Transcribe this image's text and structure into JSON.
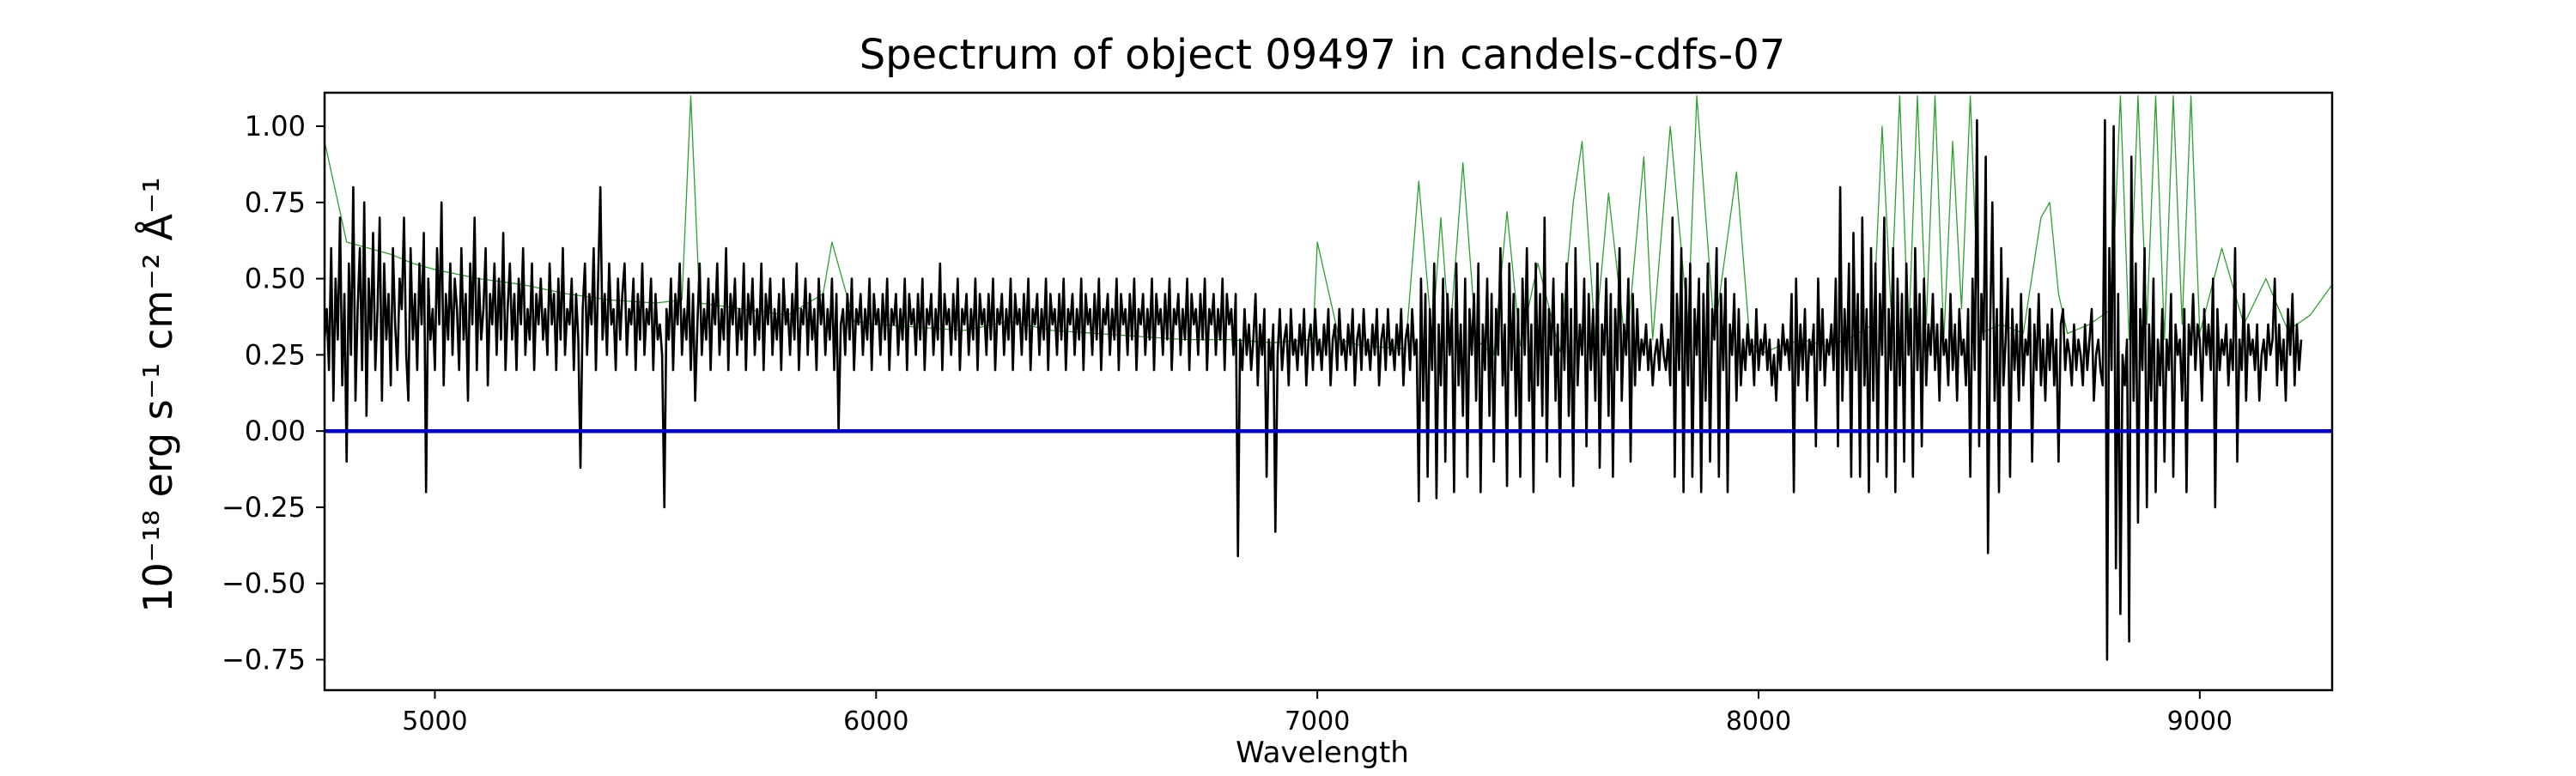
{
  "chart_data": {
    "type": "line",
    "title": "Spectrum of object 09497 in candels-cdfs-07",
    "xlabel": "Wavelength",
    "ylabel": "10⁻¹⁸ erg s⁻¹ cm⁻² Å⁻¹",
    "xlim": [
      4750,
      9300
    ],
    "ylim": [
      -0.85,
      1.11
    ],
    "x_ticks": [
      5000,
      6000,
      7000,
      8000,
      9000
    ],
    "x_tick_labels": [
      "5000",
      "6000",
      "7000",
      "8000",
      "9000"
    ],
    "y_ticks": [
      -0.75,
      -0.5,
      -0.25,
      0.0,
      0.25,
      0.5,
      0.75,
      1.0
    ],
    "y_tick_labels": [
      "−0.75",
      "−0.50",
      "−0.25",
      "0.00",
      "0.25",
      "0.50",
      "0.75",
      "1.00"
    ],
    "grid": false,
    "series": [
      {
        "style": "thin-green",
        "color": "#2ca02c",
        "x": [
          4750,
          4800,
          4850,
          4900,
          4950,
          5000,
          5100,
          5200,
          5300,
          5400,
          5500,
          5560,
          5580,
          5600,
          5700,
          5800,
          5880,
          5900,
          5950,
          6000,
          6100,
          6200,
          6300,
          6400,
          6500,
          6600,
          6700,
          6800,
          6900,
          6990,
          7000,
          7050,
          7100,
          7200,
          7230,
          7260,
          7280,
          7300,
          7330,
          7360,
          7400,
          7430,
          7460,
          7500,
          7550,
          7580,
          7600,
          7630,
          7660,
          7700,
          7740,
          7760,
          7800,
          7840,
          7860,
          7900,
          7950,
          7980,
          8000,
          8050,
          8100,
          8150,
          8200,
          8260,
          8280,
          8300,
          8320,
          8340,
          8360,
          8380,
          8400,
          8420,
          8440,
          8460,
          8480,
          8500,
          8550,
          8600,
          8640,
          8660,
          8680,
          8700,
          8750,
          8800,
          8820,
          8840,
          8860,
          8880,
          8900,
          8920,
          8940,
          8960,
          8980,
          9000,
          9050,
          9100,
          9150,
          9200,
          9250,
          9300
        ],
        "y": [
          0.95,
          0.62,
          0.6,
          0.58,
          0.55,
          0.53,
          0.5,
          0.48,
          0.45,
          0.43,
          0.42,
          0.43,
          1.1,
          0.42,
          0.4,
          0.38,
          0.45,
          0.62,
          0.36,
          0.35,
          0.34,
          0.33,
          0.36,
          0.33,
          0.32,
          0.31,
          0.3,
          0.3,
          0.29,
          0.3,
          0.62,
          0.3,
          0.28,
          0.27,
          0.82,
          0.3,
          0.7,
          0.3,
          0.88,
          0.3,
          0.25,
          0.72,
          0.28,
          0.55,
          0.26,
          0.75,
          0.95,
          0.3,
          0.78,
          0.26,
          0.9,
          0.3,
          1.0,
          0.35,
          1.1,
          0.32,
          0.85,
          0.3,
          0.25,
          0.28,
          0.3,
          0.28,
          0.3,
          0.35,
          1.0,
          0.4,
          1.1,
          0.3,
          1.1,
          0.35,
          1.1,
          0.3,
          0.95,
          0.4,
          1.1,
          0.32,
          0.35,
          0.32,
          0.7,
          0.75,
          0.45,
          0.32,
          0.35,
          0.4,
          1.1,
          0.3,
          1.1,
          0.35,
          1.1,
          0.3,
          1.1,
          0.35,
          1.1,
          0.32,
          0.6,
          0.35,
          0.5,
          0.33,
          0.38,
          0.48
        ]
      },
      {
        "style": "thick-black",
        "color": "#000000",
        "x_start": 4750,
        "x_step": 5,
        "y": [
          0.3,
          0.4,
          0.2,
          0.6,
          0.1,
          0.5,
          0.3,
          0.7,
          0.15,
          0.45,
          -0.1,
          0.55,
          0.25,
          0.8,
          0.1,
          0.4,
          0.6,
          0.2,
          0.75,
          0.05,
          0.5,
          0.3,
          0.65,
          0.2,
          0.4,
          0.7,
          0.1,
          0.55,
          0.3,
          0.45,
          0.15,
          0.6,
          0.35,
          0.2,
          0.5,
          0.4,
          0.7,
          0.25,
          0.1,
          0.6,
          0.3,
          0.45,
          0.2,
          0.55,
          0.35,
          0.65,
          -0.2,
          0.5,
          0.3,
          0.4,
          0.2,
          0.6,
          0.35,
          0.75,
          0.15,
          0.45,
          0.3,
          0.55,
          0.25,
          0.5,
          0.4,
          0.2,
          0.6,
          0.3,
          0.45,
          0.1,
          0.55,
          0.35,
          0.7,
          0.2,
          0.5,
          0.3,
          0.4,
          0.6,
          0.15,
          0.45,
          0.35,
          0.55,
          0.25,
          0.5,
          0.3,
          0.65,
          0.2,
          0.4,
          0.55,
          0.3,
          0.45,
          0.2,
          0.5,
          0.35,
          0.6,
          0.25,
          0.4,
          0.3,
          0.55,
          0.2,
          0.45,
          0.35,
          0.5,
          0.3,
          0.4,
          0.25,
          0.55,
          0.35,
          0.45,
          0.2,
          0.5,
          0.3,
          0.6,
          0.25,
          0.4,
          0.35,
          0.5,
          0.2,
          0.45,
          0.3,
          -0.12,
          0.4,
          0.55,
          0.25,
          0.45,
          0.35,
          0.6,
          0.2,
          0.5,
          0.8,
          0.3,
          0.45,
          0.25,
          0.55,
          0.35,
          0.4,
          0.2,
          0.5,
          0.3,
          0.45,
          0.55,
          0.25,
          0.4,
          0.35,
          0.5,
          0.2,
          0.45,
          0.3,
          0.55,
          0.25,
          0.4,
          0.35,
          0.5,
          0.2,
          0.45,
          0.3,
          0.35,
          0.25,
          -0.25,
          0.4,
          0.3,
          0.5,
          0.2,
          0.45,
          0.35,
          0.55,
          0.25,
          0.4,
          0.3,
          0.5,
          0.2,
          0.45,
          0.1,
          0.35,
          0.55,
          0.25,
          0.4,
          0.3,
          0.5,
          0.2,
          0.45,
          0.35,
          0.55,
          0.25,
          0.4,
          0.3,
          0.6,
          0.2,
          0.45,
          0.35,
          0.5,
          0.25,
          0.4,
          0.3,
          0.55,
          0.2,
          0.45,
          0.35,
          0.5,
          0.25,
          0.4,
          0.3,
          0.55,
          0.2,
          0.45,
          0.35,
          0.5,
          0.25,
          0.4,
          0.3,
          0.45,
          0.2,
          0.5,
          0.35,
          0.4,
          0.25,
          0.45,
          0.3,
          0.55,
          0.2,
          0.4,
          0.35,
          0.5,
          0.25,
          0.45,
          0.3,
          0.4,
          0.2,
          0.5,
          0.35,
          0.45,
          0.25,
          0.4,
          0.3,
          0.5,
          0.2,
          0.45,
          0.0,
          0.35,
          0.4,
          0.25,
          0.45,
          0.3,
          0.5,
          0.2,
          0.4,
          0.35,
          0.45,
          0.25,
          0.4,
          0.3,
          0.5,
          0.2,
          0.45,
          0.35,
          0.4,
          0.25,
          0.45,
          0.3,
          0.5,
          0.2,
          0.4,
          0.35,
          0.45,
          0.25,
          0.4,
          0.3,
          0.5,
          0.2,
          0.45,
          0.35,
          0.4,
          0.25,
          0.45,
          0.3,
          0.5,
          0.2,
          0.4,
          0.35,
          0.45,
          0.25,
          0.4,
          0.3,
          0.55,
          0.2,
          0.45,
          0.35,
          0.4,
          0.25,
          0.45,
          0.3,
          0.5,
          0.2,
          0.4,
          0.35,
          0.45,
          0.25,
          0.4,
          0.3,
          0.5,
          0.2,
          0.45,
          0.35,
          0.4,
          0.25,
          0.45,
          0.3,
          0.5,
          0.2,
          0.4,
          0.35,
          0.45,
          0.25,
          0.4,
          0.3,
          0.5,
          0.2,
          0.45,
          0.35,
          0.4,
          0.25,
          0.45,
          0.3,
          0.5,
          0.2,
          0.4,
          0.35,
          0.45,
          0.25,
          0.4,
          0.3,
          0.5,
          0.2,
          0.45,
          0.35,
          0.4,
          0.25,
          0.45,
          0.3,
          0.5,
          0.2,
          0.4,
          0.35,
          0.45,
          0.25,
          0.4,
          0.3,
          0.5,
          0.2,
          0.45,
          0.35,
          0.4,
          0.25,
          0.45,
          0.3,
          0.5,
          0.2,
          0.4,
          0.35,
          0.45,
          0.25,
          0.4,
          0.3,
          0.5,
          0.2,
          0.45,
          0.35,
          0.4,
          0.25,
          0.45,
          0.3,
          0.5,
          0.2,
          0.4,
          0.35,
          0.45,
          0.25,
          0.4,
          0.3,
          0.5,
          0.2,
          0.45,
          0.35,
          0.4,
          0.25,
          0.45,
          0.3,
          0.5,
          0.2,
          0.4,
          0.35,
          0.45,
          0.25,
          0.4,
          0.3,
          0.5,
          0.2,
          0.45,
          0.35,
          0.4,
          0.25,
          0.45,
          0.3,
          0.5,
          0.2,
          0.4,
          0.35,
          0.45,
          0.25,
          0.4,
          0.3,
          0.5,
          0.2,
          0.45,
          0.35,
          0.4,
          0.25,
          0.45,
          -0.41,
          0.3,
          0.2,
          0.4,
          0.25,
          0.35,
          0.2,
          0.3,
          0.45,
          0.15,
          0.35,
          0.25,
          0.4,
          -0.15,
          0.3,
          0.2,
          0.35,
          -0.33,
          0.25,
          0.4,
          0.2,
          0.3,
          0.35,
          0.15,
          0.4,
          0.25,
          0.3,
          0.2,
          0.35,
          0.25,
          0.4,
          0.15,
          0.3,
          0.35,
          0.2,
          0.4,
          0.25,
          0.3,
          0.2,
          0.35,
          0.25,
          0.4,
          0.15,
          0.3,
          0.35,
          0.2,
          0.4,
          0.25,
          0.3,
          0.2,
          0.35,
          0.25,
          0.4,
          0.15,
          0.3,
          0.35,
          0.2,
          0.4,
          0.25,
          0.3,
          0.2,
          0.35,
          0.25,
          0.4,
          0.15,
          0.3,
          0.35,
          0.2,
          0.4,
          0.25,
          0.3,
          0.2,
          0.35,
          0.25,
          0.4,
          0.15,
          0.3,
          0.35,
          0.2,
          0.4,
          0.25,
          0.3,
          -0.23,
          0.5,
          0.1,
          0.45,
          -0.15,
          0.4,
          0.2,
          0.55,
          -0.22,
          0.35,
          0.15,
          0.5,
          -0.1,
          0.45,
          0.25,
          0.4,
          -0.2,
          0.55,
          0.15,
          0.35,
          0.05,
          0.5,
          -0.15,
          0.4,
          0.25,
          0.45,
          0.1,
          0.55,
          -0.2,
          0.35,
          0.2,
          0.5,
          0.05,
          0.45,
          -0.1,
          0.4,
          0.25,
          0.6,
          0.15,
          0.35,
          -0.18,
          0.55,
          0.2,
          0.45,
          0.05,
          0.4,
          -0.15,
          0.5,
          0.25,
          0.6,
          0.1,
          0.35,
          -0.2,
          0.55,
          0.15,
          0.45,
          0.05,
          0.7,
          -0.1,
          0.4,
          0.25,
          0.5,
          0.1,
          0.35,
          -0.15,
          0.45,
          0.2,
          0.55,
          0.05,
          0.4,
          -0.18,
          0.6,
          0.15,
          0.35,
          0.25,
          0.5,
          -0.05,
          0.45,
          0.2,
          0.4,
          0.1,
          0.55,
          -0.12,
          0.35,
          0.25,
          0.5,
          0.05,
          0.45,
          -0.15,
          0.4,
          0.2,
          0.6,
          0.1,
          0.35,
          0.25,
          0.5,
          -0.1,
          0.45,
          0.15,
          0.4,
          0.2,
          0.3,
          0.25,
          0.35,
          0.2,
          0.3,
          0.15,
          0.25,
          0.3,
          0.2,
          0.35,
          0.25,
          0.2,
          0.3,
          0.15,
          0.7,
          -0.15,
          0.45,
          0.2,
          0.6,
          -0.2,
          0.5,
          0.15,
          0.55,
          -0.15,
          0.4,
          0.25,
          0.5,
          -0.2,
          0.45,
          0.1,
          0.55,
          -0.1,
          0.4,
          0.3,
          0.6,
          -0.15,
          0.45,
          0.2,
          0.5,
          -0.2,
          0.35,
          0.25,
          0.45,
          0.1,
          0.4,
          0.15,
          0.3,
          0.2,
          0.35,
          0.25,
          0.3,
          0.15,
          0.4,
          0.2,
          0.3,
          0.25,
          0.35,
          0.2,
          0.3,
          0.15,
          0.25,
          0.1,
          0.3,
          0.2,
          0.35,
          0.25,
          0.3,
          0.2,
          0.45,
          -0.2,
          0.5,
          0.15,
          0.35,
          0.2,
          0.4,
          0.1,
          0.3,
          0.25,
          0.35,
          -0.05,
          0.5,
          0.2,
          0.4,
          0.15,
          0.3,
          0.25,
          0.35,
          0.2,
          0.5,
          -0.05,
          0.8,
          0.1,
          0.4,
          0.2,
          0.55,
          -0.15,
          0.65,
          0.2,
          0.45,
          -0.15,
          0.7,
          0.15,
          0.4,
          -0.2,
          0.6,
          0.1,
          0.55,
          -0.1,
          0.45,
          0.25,
          0.7,
          -0.15,
          0.4,
          0.2,
          0.6,
          -0.2,
          0.5,
          0.15,
          0.45,
          -0.1,
          0.55,
          0.25,
          0.4,
          -0.15,
          0.6,
          0.2,
          0.45,
          -0.05,
          0.5,
          0.15,
          0.35,
          0.25,
          0.45,
          0.2,
          0.35,
          0.1,
          0.4,
          0.25,
          0.3,
          0.15,
          0.45,
          0.2,
          0.35,
          0.1,
          0.4,
          0.25,
          0.3,
          0.15,
          0.4,
          -0.15,
          0.5,
          0.2,
          1.02,
          -0.05,
          0.45,
          0.3,
          0.9,
          -0.4,
          0.35,
          0.75,
          0.1,
          0.4,
          -0.2,
          0.6,
          0.15,
          0.3,
          0.5,
          -0.15,
          0.4,
          0.2,
          0.35,
          0.1,
          0.45,
          0.15,
          0.3,
          0.25,
          0.4,
          -0.1,
          0.35,
          0.2,
          0.45,
          0.15,
          0.3,
          0.1,
          0.35,
          0.2,
          0.4,
          0.15,
          0.3,
          -0.1,
          0.35,
          0.4,
          0.2,
          0.3,
          0.25,
          0.15,
          0.35,
          0.2,
          0.3,
          0.25,
          0.15,
          0.35,
          0.2,
          0.3,
          0.4,
          0.1,
          0.25,
          0.3,
          0.2,
          0.15,
          1.02,
          -0.75,
          0.6,
          0.2,
          1.0,
          -0.45,
          0.45,
          -0.6,
          0.25,
          0.15,
          0.3,
          -0.69,
          0.9,
          0.1,
          0.55,
          -0.3,
          0.4,
          0.2,
          0.6,
          -0.25,
          0.35,
          0.1,
          0.5,
          -0.2,
          0.3,
          0.15,
          0.4,
          -0.1,
          0.3,
          0.2,
          0.45,
          -0.15,
          0.35,
          0.25,
          0.3,
          0.1,
          0.4,
          -0.2,
          0.35,
          0.25,
          0.45,
          0.2,
          0.35,
          0.3,
          0.1,
          0.4,
          0.25,
          0.35,
          0.2,
          0.5,
          -0.25,
          0.4,
          0.2,
          0.3,
          0.25,
          0.35,
          0.15,
          0.3,
          0.2,
          0.6,
          -0.1,
          0.3,
          0.2,
          0.45,
          0.1,
          0.35,
          0.25,
          0.3,
          0.2,
          0.35,
          0.1,
          0.25,
          0.3,
          0.2,
          0.35,
          0.25,
          0.3,
          0.5,
          0.15,
          0.35,
          0.2,
          0.3,
          0.1,
          0.4,
          0.25,
          0.45,
          0.15,
          0.35,
          0.2,
          0.3
        ]
      },
      {
        "style": "zero-line",
        "color": "#0000cc",
        "x": [
          4750,
          9300
        ],
        "y": [
          0,
          0
        ]
      }
    ]
  }
}
